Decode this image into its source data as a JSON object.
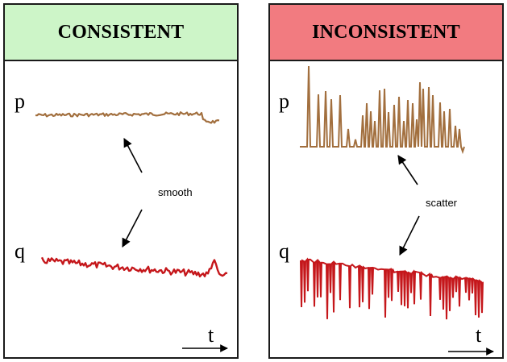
{
  "colors": {
    "consistent_header_bg": "#cdf5c8",
    "inconsistent_header_bg": "#f27b80",
    "p_signal": "#a26f3e",
    "q_signal": "#c5171b",
    "border": "#1a1a1a"
  },
  "left_panel": {
    "title": "CONSISTENT",
    "p_label": "p",
    "q_label": "q",
    "annotation": "smooth",
    "time_label": "t"
  },
  "right_panel": {
    "title": "INCONSISTENT",
    "p_label": "p",
    "q_label": "q",
    "annotation": "scatter",
    "time_label": "t"
  }
}
